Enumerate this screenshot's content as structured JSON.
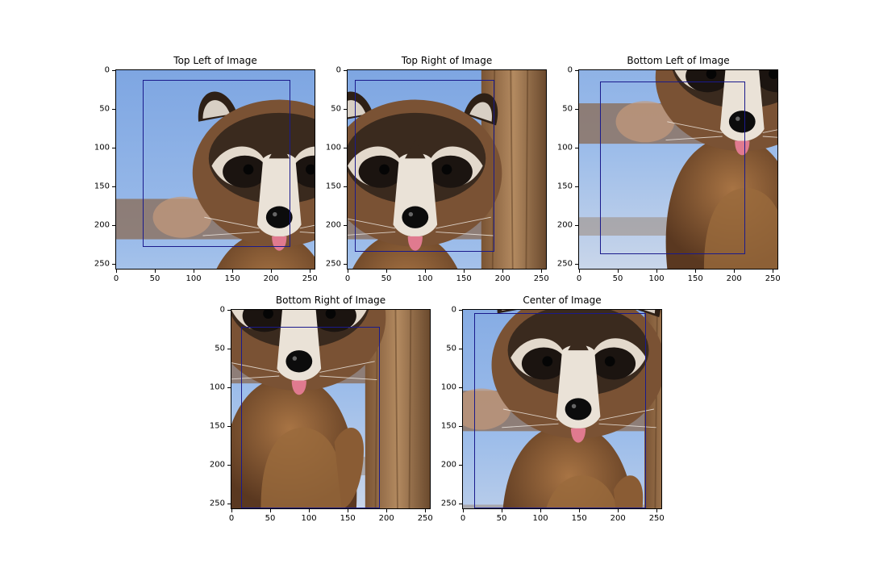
{
  "figure": {
    "panels": [
      {
        "title": "Top Left of Image",
        "crop": {
          "x0": 0,
          "y0": 0
        },
        "box": {
          "x0": 34,
          "y0": 13,
          "x1": 225,
          "y1": 228
        },
        "xticks": [
          "0",
          "50",
          "100",
          "150",
          "200",
          "250"
        ],
        "yticks": [
          "0",
          "50",
          "100",
          "150",
          "200",
          "250"
        ]
      },
      {
        "title": "Top Right of Image",
        "crop": {
          "x0": 1,
          "y0": 0
        },
        "box": {
          "x0": 9,
          "y0": 12,
          "x1": 189,
          "y1": 234
        },
        "xticks": [
          "0",
          "50",
          "100",
          "150",
          "200",
          "250"
        ],
        "yticks": [
          "0",
          "50",
          "100",
          "150",
          "200",
          "250"
        ]
      },
      {
        "title": "Bottom Left of Image",
        "crop": {
          "x0": 0,
          "y0": 1
        },
        "box": {
          "x0": 27,
          "y0": 15,
          "x1": 214,
          "y1": 237
        },
        "xticks": [
          "0",
          "50",
          "100",
          "150",
          "200",
          "250"
        ],
        "yticks": [
          "0",
          "50",
          "100",
          "150",
          "200",
          "250"
        ]
      },
      {
        "title": "Bottom Right of Image",
        "crop": {
          "x0": 1,
          "y0": 1
        },
        "box": {
          "x0": 13,
          "y0": 22,
          "x1": 192,
          "y1": 256
        },
        "xticks": [
          "0",
          "50",
          "100",
          "150",
          "200",
          "250"
        ],
        "yticks": [
          "0",
          "50",
          "100",
          "150",
          "200",
          "250"
        ]
      },
      {
        "title": "Center of Image",
        "crop": {
          "x0": 0.5,
          "y0": 0.5
        },
        "box": {
          "x0": 15,
          "y0": 4,
          "x1": 236,
          "y1": 256
        },
        "xticks": [
          "0",
          "50",
          "100",
          "150",
          "200",
          "250"
        ],
        "yticks": [
          "0",
          "50",
          "100",
          "150",
          "200",
          "250"
        ]
      }
    ],
    "colors": {
      "bounding_box": "#1a1a8c",
      "sky": "#8fb3e8",
      "fur_dark": "#3b2a1e",
      "fur_brown": "#8a5a32",
      "fur_light": "#d9cfc2",
      "wood": "#a07650",
      "tongue": "#e07a8f"
    }
  }
}
